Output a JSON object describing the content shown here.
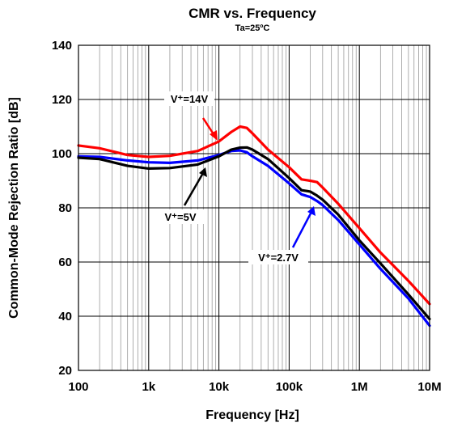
{
  "chart_data": {
    "type": "line",
    "title": "CMR vs. Frequency",
    "subtitle": "Ta=25ºC",
    "xlabel": "Frequency [Hz]",
    "ylabel": "Common-Mode Rejection Ratio [dB]",
    "x_scale": "log",
    "xlim": [
      100,
      10000000
    ],
    "ylim": [
      20,
      140
    ],
    "grid": true,
    "x_ticks": [
      100,
      1000,
      10000,
      100000,
      1000000,
      10000000
    ],
    "x_tick_labels": [
      "100",
      "1k",
      "10k",
      "100k",
      "1M",
      "10M"
    ],
    "y_ticks": [
      20,
      40,
      60,
      80,
      100,
      120,
      140
    ],
    "y_tick_labels": [
      "20",
      "40",
      "60",
      "80",
      "100",
      "120",
      "140"
    ],
    "series": [
      {
        "name": "V⁺=14V",
        "color": "#ff0000",
        "x": [
          100,
          200,
          500,
          1000,
          2000,
          5000,
          10000,
          15000,
          20000,
          25000,
          30000,
          50000,
          100000,
          150000,
          200000,
          250000,
          300000,
          500000,
          1000000,
          2000000,
          5000000,
          10000000
        ],
        "y": [
          103,
          102,
          99.5,
          98.8,
          99.2,
          101,
          104.5,
          108,
          110,
          109.5,
          107.5,
          101.5,
          95,
          90.5,
          90,
          89.5,
          87.5,
          81.5,
          72.5,
          63.5,
          53,
          44.5
        ]
      },
      {
        "name": "V⁺=5V",
        "color": "#000000",
        "x": [
          100,
          200,
          500,
          1000,
          2000,
          5000,
          10000,
          15000,
          20000,
          25000,
          30000,
          50000,
          100000,
          150000,
          200000,
          250000,
          300000,
          500000,
          1000000,
          2000000,
          5000000,
          10000000
        ],
        "y": [
          98.5,
          98,
          95.5,
          94.5,
          94.7,
          96,
          99,
          101.5,
          102.2,
          102.3,
          101.5,
          98,
          91,
          86.5,
          86,
          84.5,
          83,
          77.5,
          68,
          59.5,
          48,
          39
        ]
      },
      {
        "name": "V⁺=2.7V",
        "color": "#0000ff",
        "x": [
          100,
          200,
          500,
          1000,
          2000,
          5000,
          10000,
          15000,
          20000,
          25000,
          30000,
          50000,
          100000,
          150000,
          200000,
          250000,
          300000,
          500000,
          1000000,
          2000000,
          5000000,
          10000000
        ],
        "y": [
          99,
          98.8,
          97.5,
          96.8,
          96.6,
          97.5,
          99.5,
          101,
          101.2,
          100.5,
          99,
          95.5,
          89,
          85,
          84,
          82.5,
          81,
          75.5,
          66.5,
          57.5,
          46.5,
          36.5
        ]
      }
    ],
    "annotations": [
      {
        "text": "V⁺=14V",
        "color": "#ff0000",
        "series": "V⁺=14V"
      },
      {
        "text": "V⁺=5V",
        "color": "#000000",
        "series": "V⁺=5V"
      },
      {
        "text": "V⁺=2.7V",
        "color": "#0000ff",
        "series": "V⁺=2.7V"
      }
    ]
  }
}
